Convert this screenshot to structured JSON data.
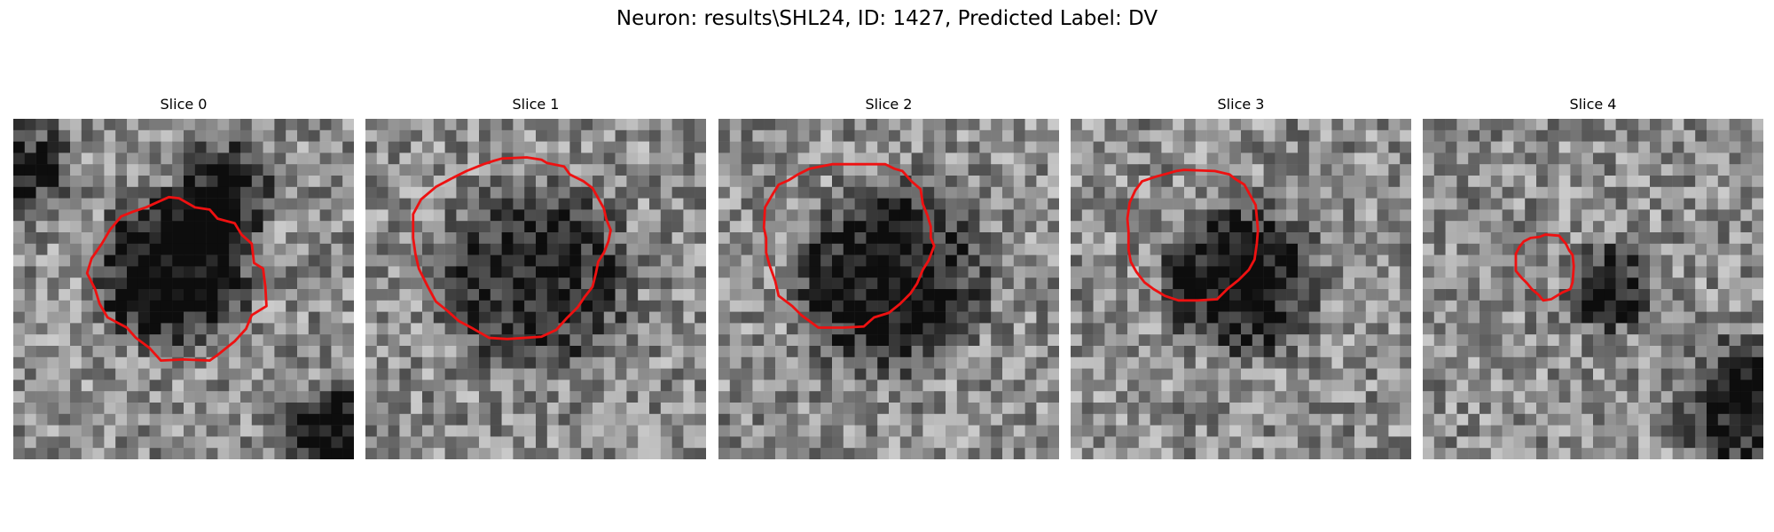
{
  "figure": {
    "title": "Neuron: results\\SHL24, ID: 1427, Predicted Label: DV"
  },
  "panels": [
    {
      "title": "Slice 0",
      "seed": 11,
      "dark_centers": [
        [
          0.47,
          0.45,
          0.28,
          0.62
        ],
        [
          0.62,
          0.22,
          0.18,
          0.55
        ],
        [
          0.98,
          0.95,
          0.22,
          0.6
        ],
        [
          0.0,
          0.15,
          0.2,
          0.45
        ]
      ]
    },
    {
      "title": "Slice 1",
      "seed": 23,
      "dark_centers": [
        [
          0.5,
          0.47,
          0.34,
          0.45
        ]
      ]
    },
    {
      "title": "Slice 2",
      "seed": 37,
      "dark_centers": [
        [
          0.5,
          0.47,
          0.34,
          0.55
        ]
      ]
    },
    {
      "title": "Slice 3",
      "seed": 41,
      "dark_centers": [
        [
          0.5,
          0.47,
          0.27,
          0.6
        ]
      ]
    },
    {
      "title": "Slice 4",
      "seed": 53,
      "dark_centers": [
        [
          0.55,
          0.5,
          0.15,
          0.5
        ],
        [
          0.95,
          0.85,
          0.25,
          0.45
        ]
      ]
    }
  ],
  "contour_color": "#ee1111",
  "contours": [
    [
      [
        14.6,
        7.0
      ],
      [
        16.0,
        7.8
      ],
      [
        17.3,
        8.0
      ],
      [
        18.0,
        8.8
      ],
      [
        19.5,
        9.2
      ],
      [
        20.1,
        10.2
      ],
      [
        21.0,
        11.0
      ],
      [
        21.2,
        12.7
      ],
      [
        22.0,
        13.2
      ],
      [
        22.2,
        14.8
      ],
      [
        22.3,
        16.5
      ],
      [
        21.0,
        17.3
      ],
      [
        20.5,
        18.5
      ],
      [
        19.5,
        19.6
      ],
      [
        18.0,
        20.8
      ],
      [
        17.3,
        21.3
      ],
      [
        15.0,
        21.2
      ],
      [
        13.0,
        21.3
      ],
      [
        12.0,
        20.2
      ],
      [
        10.8,
        19.3
      ],
      [
        10.0,
        18.4
      ],
      [
        8.3,
        17.5
      ],
      [
        7.6,
        16.3
      ],
      [
        7.2,
        15.0
      ],
      [
        6.5,
        13.6
      ],
      [
        6.9,
        12.3
      ],
      [
        7.8,
        11.0
      ],
      [
        8.5,
        9.8
      ],
      [
        9.5,
        8.6
      ],
      [
        10.5,
        8.2
      ],
      [
        11.7,
        7.8
      ],
      [
        12.8,
        7.3
      ],
      [
        13.7,
        6.9
      ]
    ],
    [
      [
        12.0,
        3.5
      ],
      [
        14.2,
        3.4
      ],
      [
        15.5,
        3.6
      ],
      [
        16.0,
        3.9
      ],
      [
        17.5,
        4.2
      ],
      [
        18.0,
        4.9
      ],
      [
        19.2,
        5.5
      ],
      [
        20.0,
        6.1
      ],
      [
        20.5,
        7.0
      ],
      [
        21.0,
        7.9
      ],
      [
        21.2,
        8.8
      ],
      [
        21.6,
        9.8
      ],
      [
        21.4,
        10.8
      ],
      [
        21.0,
        11.8
      ],
      [
        20.5,
        12.6
      ],
      [
        20.3,
        13.6
      ],
      [
        20.0,
        14.8
      ],
      [
        19.3,
        15.7
      ],
      [
        18.7,
        16.6
      ],
      [
        17.7,
        17.6
      ],
      [
        16.8,
        18.6
      ],
      [
        15.5,
        19.2
      ],
      [
        14.0,
        19.3
      ],
      [
        12.5,
        19.4
      ],
      [
        10.9,
        19.3
      ],
      [
        9.5,
        18.5
      ],
      [
        8.2,
        17.8
      ],
      [
        7.2,
        16.9
      ],
      [
        6.2,
        16.1
      ],
      [
        5.5,
        14.8
      ],
      [
        4.7,
        13.2
      ],
      [
        4.4,
        11.9
      ],
      [
        4.2,
        10.5
      ],
      [
        4.2,
        8.4
      ],
      [
        4.9,
        7.1
      ],
      [
        6.2,
        6.0
      ],
      [
        7.7,
        5.2
      ],
      [
        8.9,
        4.6
      ],
      [
        10.4,
        4.0
      ],
      [
        11.3,
        3.7
      ]
    ],
    [
      [
        10.0,
        4.0
      ],
      [
        12.8,
        4.0
      ],
      [
        14.7,
        4.0
      ],
      [
        15.5,
        4.4
      ],
      [
        16.2,
        4.6
      ],
      [
        17.0,
        5.5
      ],
      [
        17.8,
        6.2
      ],
      [
        18.0,
        7.5
      ],
      [
        18.4,
        8.5
      ],
      [
        18.7,
        9.5
      ],
      [
        18.7,
        10.5
      ],
      [
        19.0,
        11.2
      ],
      [
        18.5,
        12.5
      ],
      [
        18.0,
        13.3
      ],
      [
        17.5,
        14.5
      ],
      [
        16.9,
        15.4
      ],
      [
        16.0,
        16.3
      ],
      [
        15.0,
        17.1
      ],
      [
        13.7,
        17.5
      ],
      [
        12.8,
        18.3
      ],
      [
        11.0,
        18.4
      ],
      [
        8.8,
        18.4
      ],
      [
        7.3,
        17.3
      ],
      [
        6.5,
        16.5
      ],
      [
        5.3,
        15.6
      ],
      [
        5.0,
        14.3
      ],
      [
        4.5,
        12.9
      ],
      [
        4.2,
        11.8
      ],
      [
        4.2,
        10.5
      ],
      [
        4.0,
        9.6
      ],
      [
        4.1,
        7.8
      ],
      [
        4.8,
        6.6
      ],
      [
        5.3,
        5.8
      ],
      [
        6.2,
        5.4
      ],
      [
        7.0,
        4.9
      ],
      [
        8.0,
        4.4
      ],
      [
        9.0,
        4.2
      ]
    ],
    [
      [
        10.0,
        4.5
      ],
      [
        12.7,
        4.6
      ],
      [
        14.0,
        4.9
      ],
      [
        14.5,
        5.3
      ],
      [
        15.3,
        5.8
      ],
      [
        15.8,
        6.7
      ],
      [
        16.3,
        7.6
      ],
      [
        16.4,
        8.7
      ],
      [
        16.5,
        9.8
      ],
      [
        16.4,
        11.0
      ],
      [
        16.2,
        12.4
      ],
      [
        15.7,
        13.3
      ],
      [
        14.8,
        14.2
      ],
      [
        13.8,
        15.0
      ],
      [
        12.9,
        15.9
      ],
      [
        11.2,
        16.0
      ],
      [
        9.5,
        16.0
      ],
      [
        8.3,
        15.6
      ],
      [
        7.3,
        15.0
      ],
      [
        6.5,
        14.4
      ],
      [
        5.8,
        13.5
      ],
      [
        5.3,
        12.6
      ],
      [
        5.1,
        11.5
      ],
      [
        5.1,
        9.9
      ],
      [
        5.0,
        8.8
      ],
      [
        5.2,
        7.4
      ],
      [
        5.7,
        6.3
      ],
      [
        6.3,
        5.5
      ],
      [
        7.5,
        5.1
      ],
      [
        8.6,
        4.8
      ],
      [
        9.3,
        4.6
      ]
    ],
    [
      [
        10.3,
        10.4
      ],
      [
        10.8,
        10.2
      ],
      [
        12.0,
        10.3
      ],
      [
        12.6,
        11.0
      ],
      [
        12.9,
        11.6
      ],
      [
        13.2,
        12.0
      ],
      [
        13.3,
        13.0
      ],
      [
        13.2,
        14.4
      ],
      [
        13.0,
        15.0
      ],
      [
        12.3,
        15.3
      ],
      [
        11.8,
        15.6
      ],
      [
        11.3,
        15.9
      ],
      [
        10.6,
        16.0
      ],
      [
        10.2,
        15.5
      ],
      [
        9.6,
        15.0
      ],
      [
        9.2,
        14.5
      ],
      [
        8.7,
        14.0
      ],
      [
        8.2,
        13.4
      ],
      [
        8.2,
        12.6
      ],
      [
        8.2,
        11.9
      ],
      [
        8.5,
        11.3
      ],
      [
        8.9,
        10.8
      ],
      [
        9.5,
        10.5
      ]
    ]
  ]
}
